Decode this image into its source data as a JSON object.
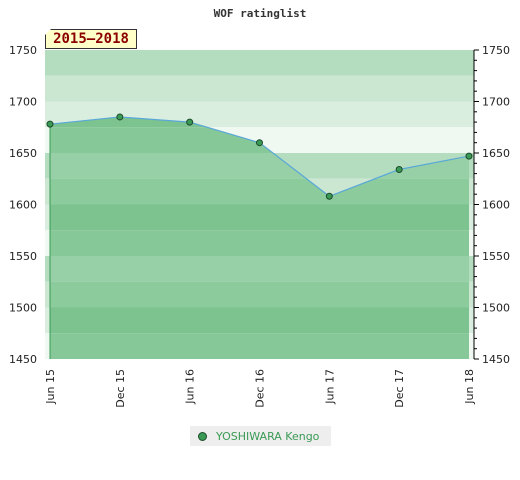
{
  "chart_data": {
    "type": "area",
    "title": "WOF ratinglist",
    "period_label": "2015–2018",
    "x": [
      "Jun 15",
      "Dec 15",
      "Jun 16",
      "Dec 16",
      "Jun 17",
      "Dec 17",
      "Jun 18"
    ],
    "series": [
      {
        "name": "YOSHIWARA Kengo",
        "values": [
          1678,
          1685,
          1680,
          1660,
          1608,
          1634,
          1647
        ]
      }
    ],
    "ylim": [
      1450,
      1750
    ],
    "yticks": [
      1450,
      1500,
      1550,
      1600,
      1650,
      1700,
      1750
    ],
    "legend_position": "bottom",
    "colors": {
      "line": "#5aa8d8",
      "marker": "#3a9a55",
      "fill": "#7cc38f"
    }
  }
}
